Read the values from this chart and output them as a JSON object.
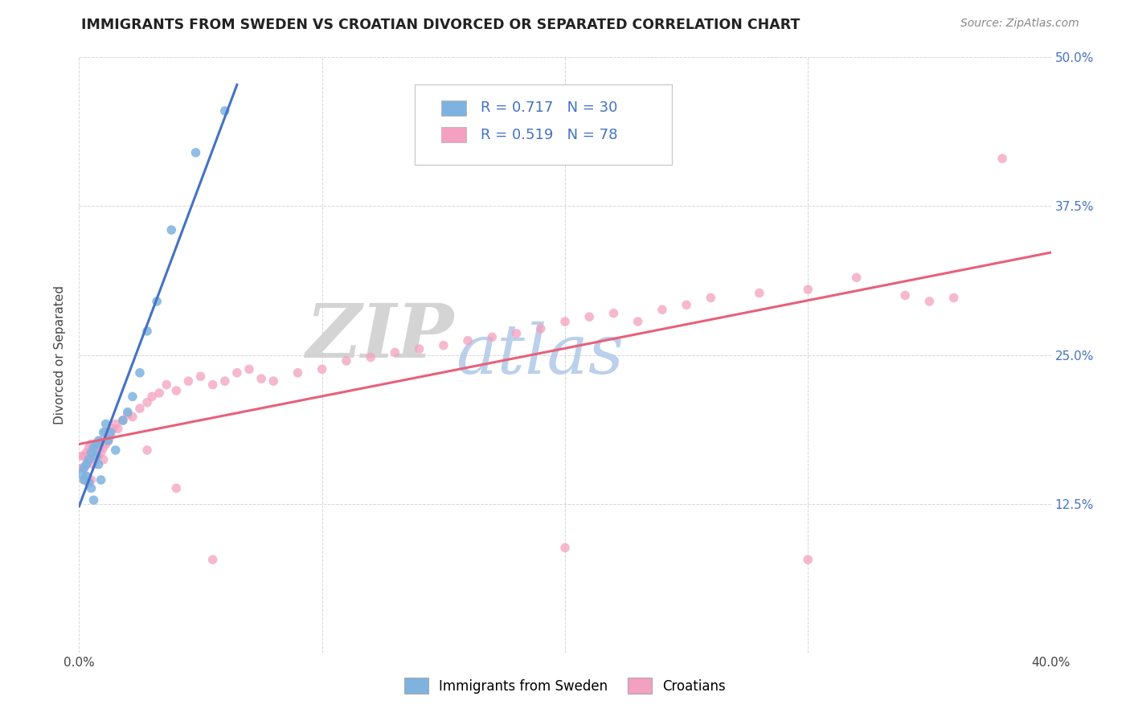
{
  "title": "IMMIGRANTS FROM SWEDEN VS CROATIAN DIVORCED OR SEPARATED CORRELATION CHART",
  "source_text": "Source: ZipAtlas.com",
  "ylabel": "Divorced or Separated",
  "xlim": [
    0.0,
    0.4
  ],
  "ylim": [
    0.0,
    0.5
  ],
  "background_color": "#ffffff",
  "grid_color": "#cccccc",
  "watermark_ZIP": "ZIP",
  "watermark_atlas": "atlas",
  "legend_label1": "Immigrants from Sweden",
  "legend_label2": "Croatians",
  "scatter_color1": "#7EB3E0",
  "scatter_color2": "#F4A0C0",
  "line_color1": "#4472C4",
  "line_color2": "#E8607A",
  "r1": 0.717,
  "n1": 30,
  "r2": 0.519,
  "n2": 78,
  "sweden_x": [
    0.001,
    0.002,
    0.002,
    0.003,
    0.003,
    0.004,
    0.004,
    0.005,
    0.005,
    0.006,
    0.006,
    0.007,
    0.007,
    0.008,
    0.008,
    0.009,
    0.01,
    0.011,
    0.012,
    0.013,
    0.015,
    0.018,
    0.02,
    0.022,
    0.025,
    0.028,
    0.032,
    0.038,
    0.048,
    0.06
  ],
  "sweden_y": [
    0.15,
    0.155,
    0.145,
    0.158,
    0.148,
    0.162,
    0.143,
    0.168,
    0.138,
    0.172,
    0.128,
    0.175,
    0.165,
    0.178,
    0.158,
    0.145,
    0.185,
    0.192,
    0.178,
    0.185,
    0.17,
    0.195,
    0.202,
    0.215,
    0.235,
    0.27,
    0.295,
    0.355,
    0.42,
    0.455
  ],
  "croatian_x": [
    0.001,
    0.001,
    0.002,
    0.002,
    0.002,
    0.003,
    0.003,
    0.003,
    0.004,
    0.004,
    0.004,
    0.005,
    0.005,
    0.005,
    0.006,
    0.006,
    0.007,
    0.007,
    0.008,
    0.008,
    0.009,
    0.009,
    0.01,
    0.01,
    0.011,
    0.011,
    0.012,
    0.013,
    0.014,
    0.015,
    0.016,
    0.018,
    0.02,
    0.022,
    0.025,
    0.028,
    0.03,
    0.033,
    0.036,
    0.04,
    0.045,
    0.05,
    0.055,
    0.06,
    0.065,
    0.07,
    0.075,
    0.08,
    0.09,
    0.1,
    0.11,
    0.12,
    0.13,
    0.14,
    0.15,
    0.16,
    0.17,
    0.18,
    0.19,
    0.2,
    0.21,
    0.22,
    0.23,
    0.24,
    0.25,
    0.26,
    0.28,
    0.3,
    0.32,
    0.34,
    0.35,
    0.36,
    0.028,
    0.04,
    0.055,
    0.2,
    0.3,
    0.38
  ],
  "croatian_y": [
    0.155,
    0.165,
    0.155,
    0.165,
    0.145,
    0.158,
    0.168,
    0.148,
    0.162,
    0.172,
    0.142,
    0.165,
    0.175,
    0.145,
    0.168,
    0.158,
    0.172,
    0.162,
    0.175,
    0.165,
    0.178,
    0.168,
    0.172,
    0.162,
    0.175,
    0.185,
    0.178,
    0.182,
    0.188,
    0.192,
    0.188,
    0.195,
    0.2,
    0.198,
    0.205,
    0.21,
    0.215,
    0.218,
    0.225,
    0.22,
    0.228,
    0.232,
    0.225,
    0.228,
    0.235,
    0.238,
    0.23,
    0.228,
    0.235,
    0.238,
    0.245,
    0.248,
    0.252,
    0.255,
    0.258,
    0.262,
    0.265,
    0.268,
    0.272,
    0.278,
    0.282,
    0.285,
    0.278,
    0.288,
    0.292,
    0.298,
    0.302,
    0.305,
    0.315,
    0.3,
    0.295,
    0.298,
    0.17,
    0.138,
    0.078,
    0.088,
    0.078,
    0.415
  ]
}
